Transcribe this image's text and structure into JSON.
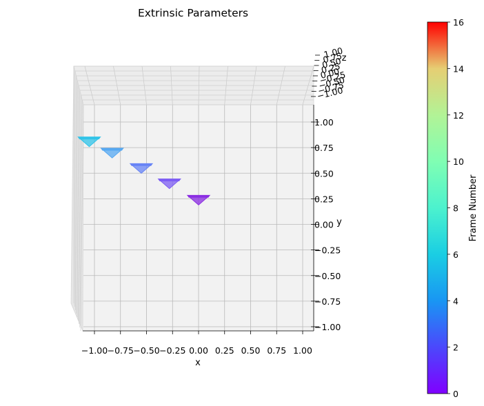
{
  "chart_data": {
    "type": "scatter",
    "title": "Extrinsic Parameters",
    "xlabel": "x",
    "ylabel": "y",
    "zlabel": "z",
    "x_ticks": [
      "−1.00",
      "−0.75",
      "−0.50",
      "−0.25",
      "0.00",
      "0.25",
      "0.50",
      "0.75",
      "1.00"
    ],
    "y_ticks": [
      "1.00",
      "0.75",
      "0.50",
      "0.25",
      "0.00",
      "−0.25",
      "−0.50",
      "−0.75",
      "−1.00"
    ],
    "z_ticks": [
      "−1.00",
      "−0.75",
      "−0.50",
      "−0.25",
      "0.00",
      "0.25",
      "0.50",
      "0.75",
      "1.00"
    ],
    "xlim": [
      -1,
      1
    ],
    "ylim": [
      -1,
      1
    ],
    "zlim": [
      -1,
      1
    ],
    "grid": true,
    "colorbar": {
      "label": "Frame Number",
      "min": 0,
      "max": 16,
      "ticks": [
        "0",
        "2",
        "4",
        "6",
        "8",
        "10",
        "12",
        "14",
        "16"
      ],
      "colormap": "rainbow"
    },
    "cameras": [
      {
        "frame": 0,
        "x": 0.0,
        "y": 0.25,
        "color": "#8a2be2"
      },
      {
        "frame": 1,
        "x": -0.28,
        "y": 0.41,
        "color": "#7c5cf3"
      },
      {
        "frame": 2,
        "x": -0.55,
        "y": 0.56,
        "color": "#6683f5"
      },
      {
        "frame": 3,
        "x": -0.83,
        "y": 0.71,
        "color": "#55a8f2"
      },
      {
        "frame": 4,
        "x": -1.05,
        "y": 0.82,
        "color": "#2fc3e8"
      }
    ]
  }
}
